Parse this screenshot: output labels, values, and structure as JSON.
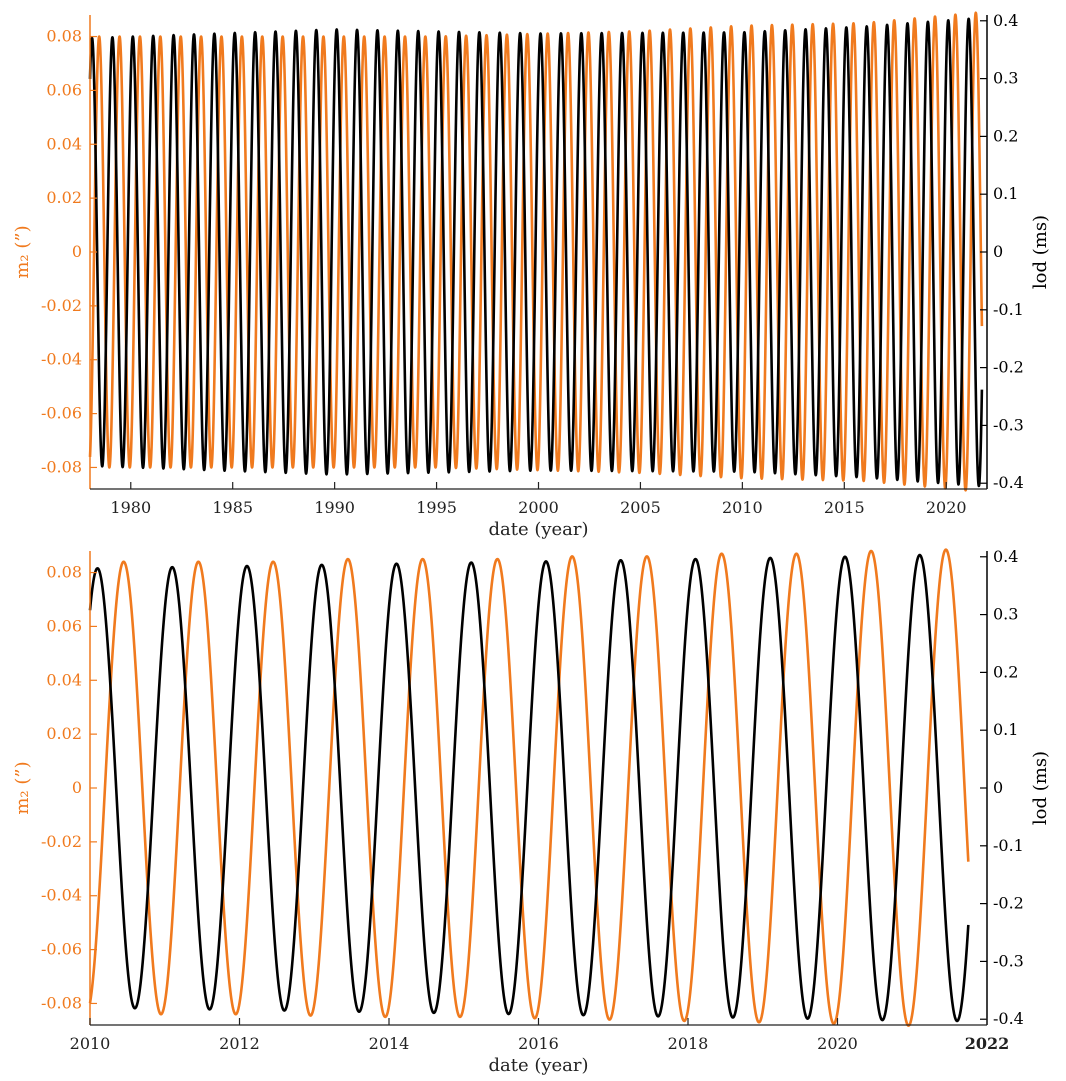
{
  "colors": {
    "m2": "#f07a1e",
    "lod": "#000000",
    "axis": "#222222"
  },
  "chart_data": [
    {
      "type": "line",
      "xlabel": "date (year)",
      "ylabel_left": "m₂ (”)",
      "ylabel_right": "lod (ms)",
      "xlim": [
        1978,
        2022
      ],
      "ylim_left": [
        -0.088,
        0.088
      ],
      "ylim_right": [
        -0.41,
        0.41
      ],
      "x_ticks": [
        1980,
        1985,
        1990,
        1995,
        2000,
        2005,
        2010,
        2015,
        2020
      ],
      "x_tick_labels": [
        "1980",
        "1985",
        "1990",
        "1995",
        "2000",
        "2005",
        "2010",
        "2015",
        "2020"
      ],
      "y_left_ticks": [
        -0.08,
        -0.06,
        -0.04,
        -0.02,
        0,
        0.02,
        0.04,
        0.06,
        0.08
      ],
      "y_left_tick_labels": [
        "-0.08",
        "-0.06",
        "-0.04",
        "-0.02",
        "0",
        "0.02",
        "0.04",
        "0.06",
        "0.08"
      ],
      "y_right_ticks": [
        -0.4,
        -0.3,
        -0.2,
        -0.1,
        0,
        0.1,
        0.2,
        0.3,
        0.4
      ],
      "y_right_tick_labels": [
        "-0.4",
        "-0.3",
        "-0.2",
        "-0.1",
        "0",
        "0.1",
        "0.2",
        "0.3",
        "0.4"
      ],
      "grid": false,
      "series": [
        {
          "axis": "left",
          "color_key": "m2",
          "period_years": 1.0,
          "x_start": 1978.0,
          "x_end": 2021.75,
          "peak_x": [
            2010.45,
            2011.45,
            2012.45,
            2013.45,
            2014.45,
            2015.45,
            2016.45,
            2017.45,
            2018.45,
            2019.45,
            2020.45,
            2021.45
          ],
          "amplitude_points": [
            [
              1978,
              0.08
            ],
            [
              1995,
              0.08
            ],
            [
              2005,
              0.082
            ],
            [
              2010,
              0.084
            ],
            [
              2016,
              0.085
            ],
            [
              2021.7,
              0.089
            ]
          ]
        },
        {
          "axis": "right",
          "color_key": "lod",
          "period_years": 1.0,
          "x_start": 1978.0,
          "x_end": 2021.75,
          "peak_x": [
            2010.1,
            2011.1,
            2012.1,
            2013.1,
            2014.1,
            2015.1,
            2016.1,
            2017.1,
            2018.1,
            2019.1,
            2020.1,
            2021.1
          ],
          "amplitude_points": [
            [
              1978,
              0.37
            ],
            [
              1990,
              0.385
            ],
            [
              2000,
              0.378
            ],
            [
              2010,
              0.38
            ],
            [
              2016,
              0.39
            ],
            [
              2021.7,
              0.405
            ]
          ]
        }
      ]
    },
    {
      "type": "line",
      "xlabel": "date (year)",
      "ylabel_left": "m₂ (”)",
      "ylabel_right": "lod (ms)",
      "xlim": [
        2010,
        2022
      ],
      "ylim_left": [
        -0.088,
        0.088
      ],
      "ylim_right": [
        -0.41,
        0.41
      ],
      "x_ticks": [
        2010,
        2012,
        2014,
        2016,
        2018,
        2020,
        2022
      ],
      "x_tick_labels": [
        "2010",
        "2012",
        "2014",
        "2016",
        "2018",
        "2020",
        "2022"
      ],
      "y_left_ticks": [
        -0.08,
        -0.06,
        -0.04,
        -0.02,
        0,
        0.02,
        0.04,
        0.06,
        0.08
      ],
      "y_left_tick_labels": [
        "-0.08",
        "-0.06",
        "-0.04",
        "-0.02",
        "0",
        "0.02",
        "0.04",
        "0.06",
        "0.08"
      ],
      "y_right_ticks": [
        -0.4,
        -0.3,
        -0.2,
        -0.1,
        0,
        0.1,
        0.2,
        0.3,
        0.4
      ],
      "y_right_tick_labels": [
        "-0.4",
        "-0.3",
        "-0.2",
        "-0.1",
        "0",
        "0.1",
        "0.2",
        "0.3",
        "0.4"
      ],
      "grid": false,
      "series": [
        {
          "axis": "left",
          "color_key": "m2",
          "period_years": 1.0,
          "x_start": 2010.0,
          "x_end": 2021.75,
          "peak_x": [
            2010.45,
            2011.45,
            2012.45,
            2013.45,
            2014.45,
            2015.45,
            2016.45,
            2017.45,
            2018.45,
            2019.45,
            2020.45,
            2021.45
          ],
          "peak_values": [
            0.084,
            0.084,
            0.084,
            0.085,
            0.085,
            0.085,
            0.086,
            0.086,
            0.087,
            0.087,
            0.088,
            0.089
          ],
          "trough_values": [
            -0.084,
            -0.084,
            -0.084,
            -0.085,
            -0.085,
            -0.085,
            -0.086,
            -0.086,
            -0.087,
            -0.087,
            -0.088,
            -0.088
          ]
        },
        {
          "axis": "right",
          "color_key": "lod",
          "period_years": 1.0,
          "x_start": 2010.0,
          "x_end": 2021.75,
          "peak_x": [
            2010.1,
            2011.1,
            2012.1,
            2013.1,
            2014.1,
            2015.1,
            2016.1,
            2017.1,
            2018.1,
            2019.1,
            2020.1,
            2021.1
          ],
          "peak_values": [
            0.38,
            0.382,
            0.384,
            0.386,
            0.388,
            0.39,
            0.392,
            0.394,
            0.396,
            0.398,
            0.4,
            0.403
          ],
          "trough_values": [
            -0.38,
            -0.382,
            -0.384,
            -0.386,
            -0.388,
            -0.39,
            -0.392,
            -0.394,
            -0.396,
            -0.398,
            -0.4,
            -0.403
          ]
        }
      ]
    }
  ]
}
